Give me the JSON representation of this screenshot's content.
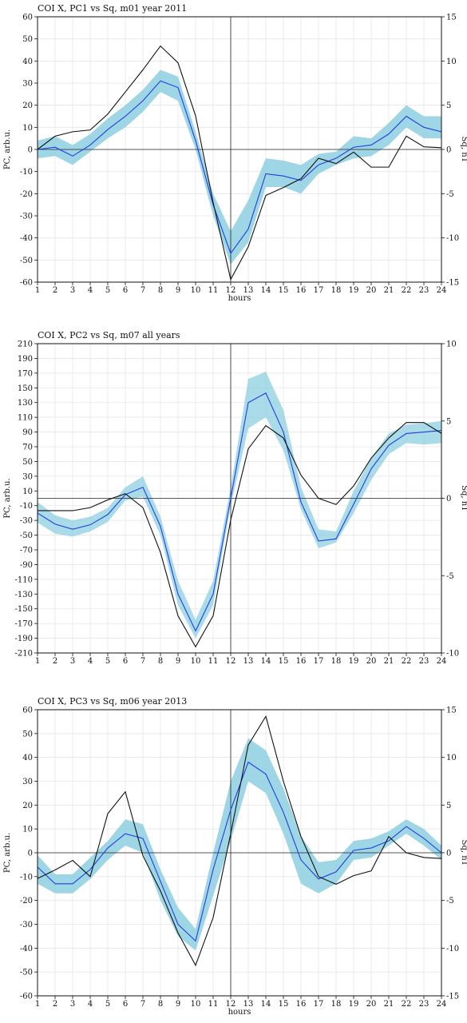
{
  "chart_data": [
    {
      "type": "line",
      "title": "COI X, PC1 vs Sq, m01 year 2011",
      "xlabel": "hours",
      "ylabel": "PC, arb.u.",
      "y2label": "Sq, nT",
      "x": [
        1,
        2,
        3,
        4,
        5,
        6,
        7,
        8,
        9,
        10,
        11,
        12,
        13,
        14,
        15,
        16,
        17,
        18,
        19,
        20,
        21,
        22,
        23,
        24
      ],
      "xlim": [
        1,
        24
      ],
      "ylim": [
        -60,
        60
      ],
      "y2lim": [
        -15,
        15
      ],
      "yticks": [
        -60,
        -50,
        -40,
        -30,
        -20,
        -10,
        0,
        10,
        20,
        30,
        40,
        50,
        60
      ],
      "y2ticks": [
        -15,
        -10,
        -5,
        0,
        5,
        10,
        15
      ],
      "vline_x": 12,
      "grid": true,
      "series": [
        {
          "axis": "left",
          "kind": "band",
          "color": "#8ecfe0",
          "lower": [
            -4,
            -3,
            -7,
            -1,
            5,
            10,
            17,
            26,
            22,
            0,
            -30,
            -52,
            -42,
            -17,
            -17,
            -20,
            -11,
            -7,
            -4,
            -3,
            2,
            10,
            5,
            5
          ],
          "upper": [
            4,
            6,
            2,
            7,
            14,
            20,
            27,
            36,
            33,
            8,
            -20,
            -37,
            -23,
            -4,
            -5,
            -7,
            -2,
            -1,
            6,
            5,
            12,
            20,
            15,
            15
          ]
        },
        {
          "axis": "left",
          "kind": "line",
          "color": "#1f3fe0",
          "values": [
            0,
            1,
            -3,
            2,
            9,
            15,
            22,
            31,
            28,
            4,
            -25,
            -47,
            -36,
            -11,
            -12,
            -14,
            -7,
            -4,
            1,
            2,
            7,
            15,
            10,
            8
          ]
        },
        {
          "axis": "right",
          "kind": "line",
          "color": "#111111",
          "values": [
            0,
            1.5,
            2,
            2.2,
            4,
            6.5,
            9,
            11.7,
            9.8,
            3.8,
            -6,
            -14.7,
            -11,
            -5.2,
            -4.3,
            -3.3,
            -1,
            -1.6,
            -0.3,
            -2,
            -2,
            1.5,
            0.3,
            0.2
          ]
        }
      ]
    },
    {
      "type": "line",
      "title": "COI X, PC2 vs Sq, m07 all years",
      "xlabel": "hours",
      "ylabel": "PC, arb.u.",
      "y2label": "Sq, nT",
      "x": [
        1,
        2,
        3,
        4,
        5,
        6,
        7,
        8,
        9,
        10,
        11,
        12,
        13,
        14,
        15,
        16,
        17,
        18,
        19,
        20,
        21,
        22,
        23,
        24
      ],
      "xlim": [
        1,
        24
      ],
      "ylim": [
        -210,
        210
      ],
      "y2lim": [
        -10,
        10
      ],
      "yticks": [
        -210,
        -190,
        -170,
        -150,
        -130,
        -110,
        -90,
        -70,
        -50,
        -30,
        -10,
        10,
        30,
        50,
        70,
        90,
        110,
        130,
        150,
        170,
        190,
        210
      ],
      "y2ticks": [
        -10,
        -5,
        0,
        5,
        10
      ],
      "vline_x": 12,
      "grid": true,
      "series": [
        {
          "axis": "left",
          "kind": "band",
          "color": "#8ecfe0",
          "lower": [
            -33,
            -48,
            -52,
            -45,
            -32,
            -3,
            2,
            -50,
            -145,
            -190,
            -145,
            -10,
            95,
            110,
            65,
            -15,
            -68,
            -60,
            -20,
            25,
            60,
            75,
            73,
            75
          ],
          "upper": [
            -5,
            -23,
            -30,
            -25,
            -13,
            15,
            30,
            -25,
            -112,
            -165,
            -112,
            15,
            162,
            172,
            120,
            15,
            -42,
            -45,
            10,
            55,
            88,
            100,
            102,
            105
          ],
          "fill_opacity": 0.75
        },
        {
          "axis": "left",
          "kind": "line",
          "color": "#1f3fe0",
          "values": [
            -20,
            -35,
            -42,
            -36,
            -22,
            5,
            15,
            -38,
            -130,
            -180,
            -130,
            0,
            130,
            143,
            90,
            -5,
            -58,
            -55,
            -8,
            40,
            72,
            88,
            90,
            92
          ]
        },
        {
          "axis": "right",
          "kind": "line",
          "color": "#111111",
          "values": [
            -0.8,
            -0.8,
            -0.8,
            -0.6,
            -0.1,
            0.3,
            -0.6,
            -3.5,
            -7.6,
            -9.6,
            -7.6,
            -1.4,
            3.2,
            4.7,
            3.9,
            1.5,
            0,
            -0.4,
            0.8,
            2.6,
            3.9,
            4.9,
            4.9,
            4.2
          ]
        }
      ]
    },
    {
      "type": "line",
      "title": "COI X, PC3 vs Sq, m06 year 2013",
      "xlabel": "hours",
      "ylabel": "PC, arb.u.",
      "y2label": "Sq, nT",
      "x": [
        1,
        2,
        3,
        4,
        5,
        6,
        7,
        8,
        9,
        10,
        11,
        12,
        13,
        14,
        15,
        16,
        17,
        18,
        19,
        20,
        21,
        22,
        23,
        24
      ],
      "xlim": [
        1,
        24
      ],
      "ylim": [
        -60,
        60
      ],
      "y2lim": [
        -15,
        15
      ],
      "yticks": [
        -60,
        -50,
        -40,
        -30,
        -20,
        -10,
        0,
        10,
        20,
        30,
        40,
        50,
        60
      ],
      "y2ticks": [
        -15,
        -10,
        -5,
        0,
        5,
        10,
        15
      ],
      "vline_x": 12,
      "grid": true,
      "series": [
        {
          "axis": "left",
          "kind": "band",
          "color": "#8ecfe0",
          "lower": [
            -13,
            -17,
            -17,
            -11,
            -3,
            3,
            0,
            -20,
            -35,
            -41,
            -18,
            5,
            30,
            25,
            8,
            -13,
            -17,
            -13,
            -3,
            -2,
            3,
            8,
            3,
            -3
          ],
          "upper": [
            -1,
            -9,
            -9,
            -2,
            5,
            14,
            12,
            -7,
            -23,
            -32,
            0,
            30,
            48,
            43,
            27,
            7,
            -4,
            -3,
            5,
            6,
            9,
            14,
            10,
            3
          ]
        },
        {
          "axis": "left",
          "kind": "line",
          "color": "#1f3fe0",
          "values": [
            -6,
            -13,
            -13,
            -7,
            2,
            8,
            6,
            -12,
            -30,
            -37,
            -7,
            18,
            38,
            33,
            17,
            -3,
            -11,
            -8,
            1,
            2,
            5,
            11,
            6,
            0
          ]
        },
        {
          "axis": "right",
          "kind": "line",
          "color": "#111111",
          "values": [
            -2.7,
            -1.8,
            -0.8,
            -2.5,
            4.1,
            6.4,
            -0.3,
            -4,
            -8.4,
            -11.8,
            -6.8,
            2,
            11.3,
            14.3,
            7.5,
            1.7,
            -2.5,
            -3.3,
            -2.4,
            -1.9,
            1.7,
            0,
            -0.5,
            -0.6
          ]
        }
      ]
    }
  ]
}
